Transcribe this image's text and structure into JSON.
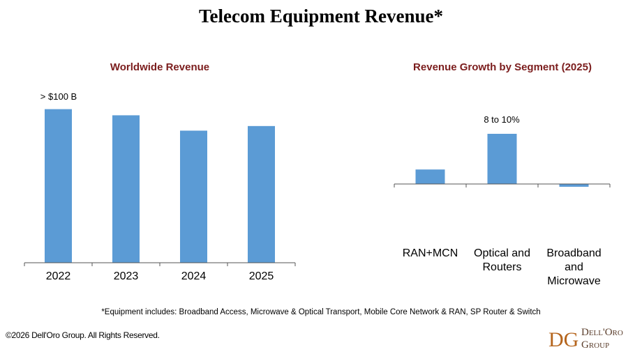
{
  "title": "Telecom Equipment Revenue*",
  "chart_data": [
    {
      "type": "bar",
      "title": "Worldwide Revenue",
      "categories": [
        "2022",
        "2023",
        "2024",
        "2025"
      ],
      "values": [
        100,
        96,
        86,
        89
      ],
      "ylim": [
        0,
        103
      ],
      "annotation": "> $100 B",
      "grid": false,
      "color": "#5b9bd5",
      "title_color": "#7b1d1d"
    },
    {
      "type": "bar",
      "title": "Revenue Growth by Segment (2025)",
      "categories": [
        "RAN+MCN",
        "Optical and Routers",
        "Broadband and Microwave"
      ],
      "category_lines": [
        [
          "RAN+MCN"
        ],
        [
          "Optical and",
          "Routers"
        ],
        [
          "Broadband",
          "and",
          "Microwave"
        ]
      ],
      "values": [
        2.6,
        9,
        -0.5
      ],
      "ylim": [
        -1,
        10.5
      ],
      "annotation": "8 to 10%",
      "grid": false,
      "color": "#5b9bd5",
      "title_color": "#7b1d1d"
    }
  ],
  "footnote": "*Equipment includes: Broadband Access, Microwave & Optical Transport, Mobile Core Network & RAN, SP Router & Switch",
  "copyright": "©2026 Dell'Oro Group. All Rights Reserved.",
  "logo": {
    "mark": "DG",
    "line1": "Dell'Oro",
    "line2": "Group"
  }
}
